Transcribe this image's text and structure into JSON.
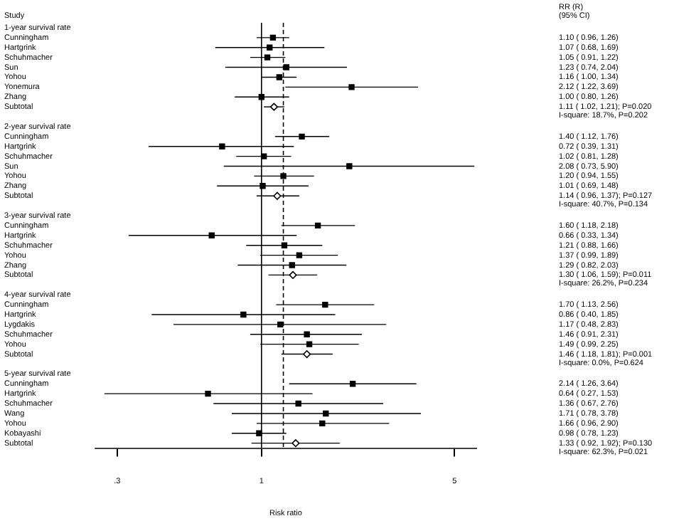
{
  "chart_data": {
    "type": "scatter",
    "orientation": "horizontal",
    "ylabel": "Study",
    "xlabel": "Risk ratio",
    "log": "x",
    "annotations": [
      "RR (R)\n(95% CI)"
    ],
    "categories": [
      "1-year survival rate",
      "Cunningham",
      "Hartgrink",
      "Schuhmacher",
      "Sun",
      "Yohou",
      "Yonemura",
      "Zhang",
      "Subtotal",
      null,
      "2-year survival rate",
      "Cunningham",
      "Hartgrink",
      "Schuhmacher",
      "Sun",
      "Yohou",
      "Zhang",
      "Subtotal",
      null,
      "3-year survival rate",
      "Cunningham",
      "Hartgrink",
      "Schuhmacher",
      "Yohou",
      "Zhang",
      "Subtotal",
      null,
      "4-year survival rate",
      "Cunningham",
      "Hartgrink",
      "Lygdakis",
      "Schuhmacher",
      "Yohou",
      "Subtotal",
      null,
      "5-year survival rate",
      "Cunningham",
      "Hartgrink",
      "Schuhmacher",
      "Wang",
      "Yohou",
      "Kobayashi",
      "Subtotal"
    ],
    "xlim": [
      0.25,
      6
    ],
    "xticks": [
      {
        "value": 0.3,
        "label": ".3"
      },
      {
        "value": 1,
        "label": "1"
      },
      {
        "value": 5,
        "label": "5"
      }
    ],
    "ref_lines": [
      {
        "axis": "x",
        "value": 1,
        "color": "#000000",
        "line_style": "solid"
      },
      {
        "axis": "x",
        "value": 1.2,
        "color": "#000000",
        "line_style": "dashed"
      }
    ],
    "series": [
      {
        "color": "#000000",
        "marker": "square",
        "values": [
          null,
          1.1,
          1.07,
          1.05,
          1.23,
          1.16,
          2.12,
          1.0,
          null,
          null,
          null,
          1.4,
          0.72,
          1.02,
          2.08,
          1.2,
          1.01,
          null,
          null,
          null,
          1.6,
          0.66,
          1.21,
          1.37,
          1.29,
          null,
          null,
          null,
          1.7,
          0.86,
          1.17,
          1.46,
          1.49,
          null,
          null,
          null,
          2.14,
          0.64,
          1.36,
          1.71,
          1.66,
          0.98,
          null
        ],
        "errors": [
          null,
          [
            0.96,
            1.26
          ],
          [
            0.68,
            1.69
          ],
          [
            0.91,
            1.22
          ],
          [
            0.74,
            2.04
          ],
          [
            1.0,
            1.34
          ],
          [
            1.22,
            3.69
          ],
          [
            0.8,
            1.26
          ],
          null,
          null,
          null,
          [
            1.12,
            1.76
          ],
          [
            0.39,
            1.31
          ],
          [
            0.81,
            1.28
          ],
          [
            0.73,
            5.9
          ],
          [
            0.94,
            1.55
          ],
          [
            0.69,
            1.48
          ],
          null,
          null,
          null,
          [
            1.18,
            2.18
          ],
          [
            0.33,
            1.34
          ],
          [
            0.88,
            1.66
          ],
          [
            0.99,
            1.89
          ],
          [
            0.82,
            2.03
          ],
          null,
          null,
          null,
          [
            1.13,
            2.56
          ],
          [
            0.4,
            1.85
          ],
          [
            0.48,
            2.83
          ],
          [
            0.91,
            2.31
          ],
          [
            0.99,
            2.25
          ],
          null,
          null,
          null,
          [
            1.26,
            3.64
          ],
          [
            0.27,
            1.53
          ],
          [
            0.67,
            2.76
          ],
          [
            0.78,
            3.78
          ],
          [
            0.96,
            2.9
          ],
          [
            0.78,
            1.23
          ],
          null
        ],
        "value_labels": [
          null,
          "1.10 ( 0.96, 1.26)",
          "1.07 ( 0.68, 1.69)",
          "1.05 ( 0.91, 1.22)",
          "1.23 ( 0.74, 2.04)",
          "1.16 ( 1.00, 1.34)",
          "2.12 ( 1.22, 3.69)",
          "1.00 ( 0.80, 1.26)",
          null,
          null,
          null,
          "1.40 ( 1.12, 1.76)",
          "0.72 ( 0.39, 1.31)",
          "1.02 ( 0.81, 1.28)",
          "2.08 ( 0.73, 5.90)",
          "1.20 ( 0.94, 1.55)",
          "1.01 ( 0.69, 1.48)",
          null,
          null,
          null,
          "1.60 ( 1.18, 2.18)",
          "0.66 ( 0.33, 1.34)",
          "1.21 ( 0.88, 1.66)",
          "1.37 ( 0.99, 1.89)",
          "1.29 ( 0.82, 2.03)",
          null,
          null,
          null,
          "1.70 ( 1.13, 2.56)",
          "0.86 ( 0.40, 1.85)",
          "1.17 ( 0.48, 2.83)",
          "1.46 ( 0.91, 2.31)",
          "1.49 ( 0.99, 2.25)",
          null,
          null,
          null,
          "2.14 ( 1.26, 3.64)",
          "0.64 ( 0.27, 1.53)",
          "1.36 ( 0.67, 2.76)",
          "1.71 ( 0.78, 3.78)",
          "1.66 ( 0.96, 2.90)",
          "0.98 ( 0.78, 1.23)",
          null
        ]
      },
      {
        "color": "#000000",
        "marker": "diamond",
        "values": [
          null,
          null,
          null,
          null,
          null,
          null,
          null,
          null,
          1.11,
          null,
          null,
          null,
          null,
          null,
          null,
          null,
          null,
          1.14,
          null,
          null,
          null,
          null,
          null,
          null,
          null,
          1.3,
          null,
          null,
          null,
          null,
          null,
          null,
          null,
          1.46,
          null,
          null,
          null,
          null,
          null,
          null,
          null,
          null,
          1.33
        ],
        "errors": [
          null,
          null,
          null,
          null,
          null,
          null,
          null,
          null,
          [
            1.02,
            1.21
          ],
          null,
          null,
          null,
          null,
          null,
          null,
          null,
          null,
          [
            0.96,
            1.37
          ],
          null,
          null,
          null,
          null,
          null,
          null,
          null,
          [
            1.06,
            1.59
          ],
          null,
          null,
          null,
          null,
          null,
          null,
          null,
          [
            1.18,
            1.81
          ],
          null,
          null,
          null,
          null,
          null,
          null,
          null,
          null,
          [
            0.92,
            1.92
          ]
        ],
        "value_labels": [
          null,
          null,
          null,
          null,
          null,
          null,
          null,
          null,
          "1.11 ( 1.02, 1.21); P=0.020\nI-square: 18.7%, P=0.202",
          null,
          null,
          null,
          null,
          null,
          null,
          null,
          null,
          "1.14 ( 0.96, 1.37); P=0.127\nI-square: 40.7%, P=0.134",
          null,
          null,
          null,
          null,
          null,
          null,
          null,
          "1.30 ( 1.06, 1.59); P=0.011\nI-square: 26.2%, P=0.234",
          null,
          null,
          null,
          null,
          null,
          null,
          null,
          "1.46 ( 1.18, 1.81); P=0.001\nI-square: 0.0%, P=0.624",
          null,
          null,
          null,
          null,
          null,
          null,
          null,
          null,
          "1.33 ( 0.92, 1.92); P=0.130\nI-square: 62.3%, P=0.021"
        ]
      }
    ]
  }
}
